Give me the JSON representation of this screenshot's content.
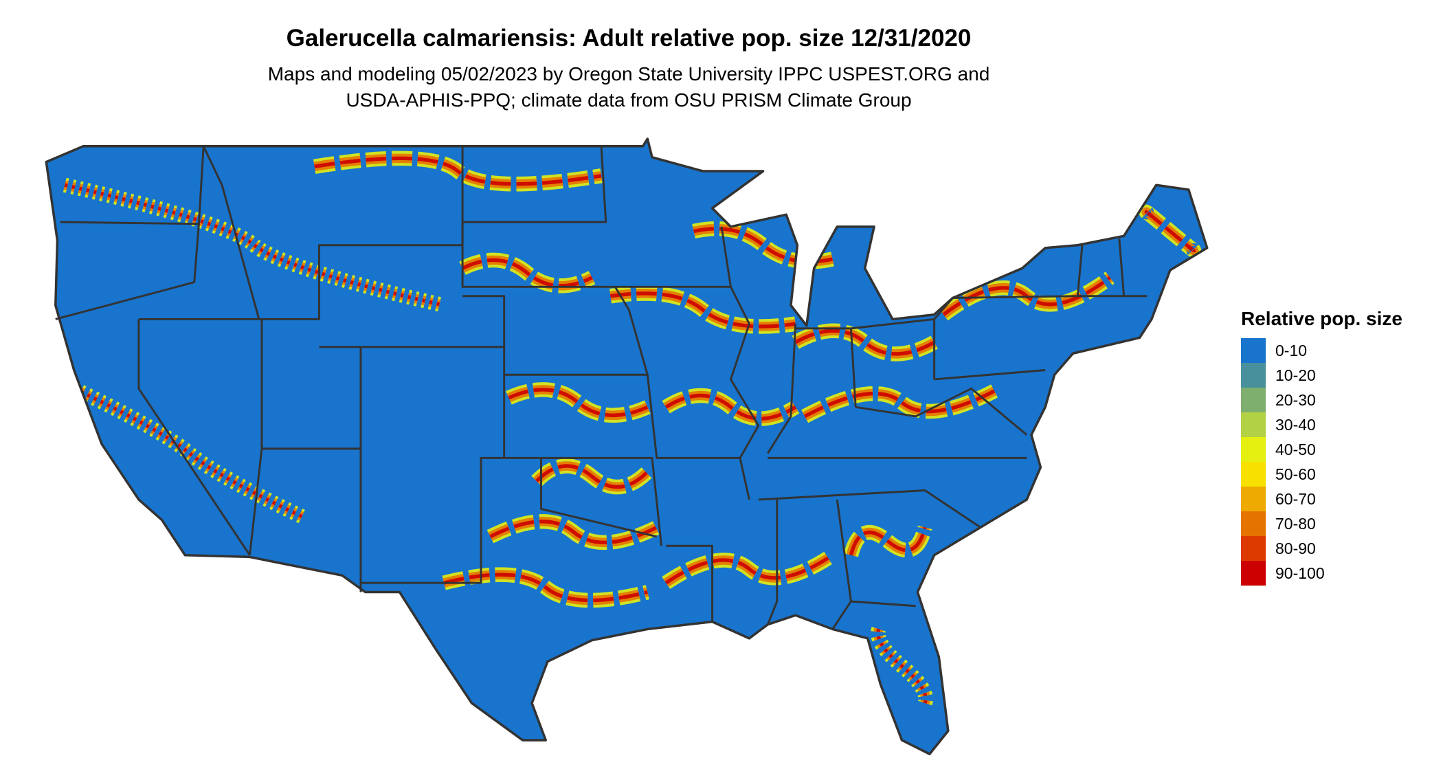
{
  "title": "Galerucella calmariensis: Adult relative pop. size 12/31/2020",
  "subtitle_lines": [
    "Maps and modeling 05/02/2023 by Oregon State University IPPC USPEST.ORG and",
    "USDA-APHIS-PPQ; climate data from OSU PRISM Climate Group"
  ],
  "map": {
    "region": "Contiguous United States",
    "base_color": "#1874CD",
    "border_color": "#333333"
  },
  "legend": {
    "title": "Relative pop. size",
    "bins": [
      {
        "label": "0-10",
        "color": "#1874CD"
      },
      {
        "label": "10-20",
        "color": "#48919C"
      },
      {
        "label": "20-30",
        "color": "#7FAF6F"
      },
      {
        "label": "30-40",
        "color": "#B3D144"
      },
      {
        "label": "40-50",
        "color": "#E5F010"
      },
      {
        "label": "50-60",
        "color": "#F8E000"
      },
      {
        "label": "60-70",
        "color": "#EEAA00"
      },
      {
        "label": "70-80",
        "color": "#E57300"
      },
      {
        "label": "80-90",
        "color": "#DD3A00"
      },
      {
        "label": "90-100",
        "color": "#CC0000"
      }
    ]
  }
}
